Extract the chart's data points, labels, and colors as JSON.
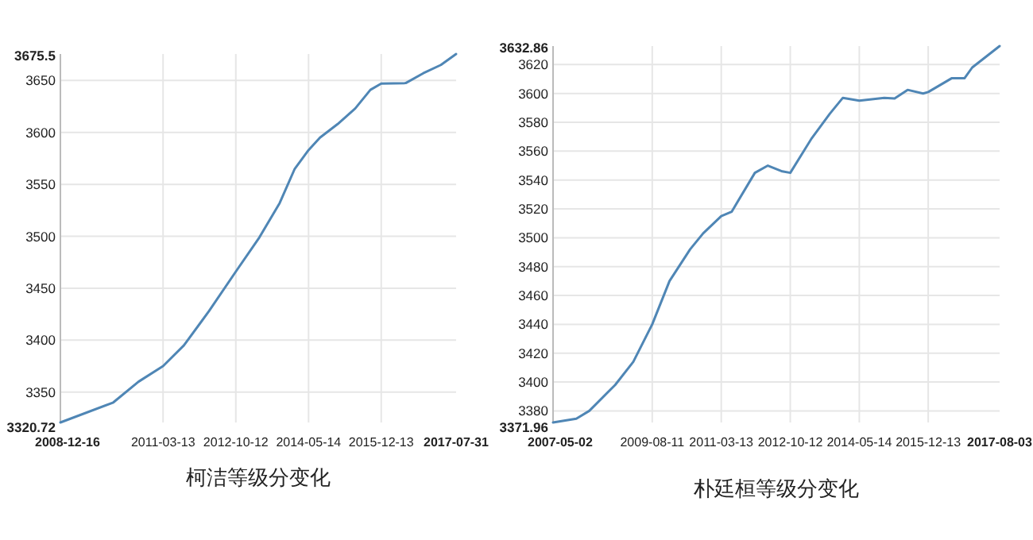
{
  "chart_data": [
    {
      "type": "line",
      "title": "柯洁等级分变化",
      "x": [
        "2008-12-16",
        "2010-02-10",
        "2010-08-30",
        "2011-03-13",
        "2011-08-26",
        "2012-03-13",
        "2012-10-12",
        "2013-04-18",
        "2013-09-26",
        "2014-01-24",
        "2014-05-14",
        "2014-08-13",
        "2014-12-31",
        "2015-05-20",
        "2015-09-18",
        "2015-12-13",
        "2016-06-25",
        "2016-11-12",
        "2017-04-01",
        "2017-07-31"
      ],
      "series": [
        {
          "color": "#4f86b5",
          "values": [
            3320.72,
            3340,
            3360,
            3375,
            3395,
            3428,
            3466,
            3499,
            3532,
            3565,
            3583,
            3595,
            3608,
            3623,
            3641,
            3647,
            3647.5,
            3657,
            3665,
            3675.5
          ]
        }
      ],
      "xlim": [
        "2008-12-16",
        "2017-07-31"
      ],
      "xticks": [
        "2008-12-16",
        "2011-03-13",
        "2012-10-12",
        "2014-05-14",
        "2015-12-13",
        "2017-07-31"
      ],
      "ylim": [
        3320.72,
        3675.5
      ],
      "yticks": [
        3320.72,
        3350,
        3400,
        3450,
        3500,
        3550,
        3600,
        3650,
        3675.5
      ],
      "grid": true,
      "marker": "none",
      "line_style": "solid"
    },
    {
      "type": "line",
      "title": "朴廷桓等级分变化",
      "x": [
        "2007-05-02",
        "2007-11-13",
        "2008-03-01",
        "2008-10-04",
        "2009-03-05",
        "2009-08-11",
        "2010-01-03",
        "2010-06-25",
        "2010-10-12",
        "2011-03-13",
        "2011-06-08",
        "2011-12-20",
        "2012-04-07",
        "2012-08-06",
        "2012-10-12",
        "2013-04-10",
        "2013-09-09",
        "2013-12-27",
        "2014-05-14",
        "2014-12-09",
        "2015-03-06",
        "2015-06-23",
        "2015-10-31",
        "2015-12-13",
        "2016-06-26",
        "2016-10-12",
        "2016-12-16",
        "2017-08-03"
      ],
      "series": [
        {
          "color": "#4f86b5",
          "values": [
            3371.96,
            3374.6,
            3380,
            3398,
            3414,
            3440,
            3470,
            3492,
            3503,
            3515,
            3518,
            3545,
            3550,
            3546,
            3545,
            3569,
            3586,
            3597,
            3595,
            3597,
            3596.5,
            3602.5,
            3600,
            3601,
            3610.5,
            3610.5,
            3618,
            3632.86
          ]
        }
      ],
      "xlim": [
        "2007-05-02",
        "2017-08-03"
      ],
      "xticks": [
        "2007-05-02",
        "2009-08-11",
        "2011-03-13",
        "2012-10-12",
        "2014-05-14",
        "2015-12-13",
        "2017-08-03"
      ],
      "ylim": [
        3371.96,
        3632.86
      ],
      "yticks": [
        3371.96,
        3380,
        3400,
        3420,
        3440,
        3460,
        3480,
        3500,
        3520,
        3540,
        3560,
        3580,
        3600,
        3620,
        3632.86
      ],
      "grid": true,
      "marker": "none",
      "line_style": "solid"
    }
  ]
}
